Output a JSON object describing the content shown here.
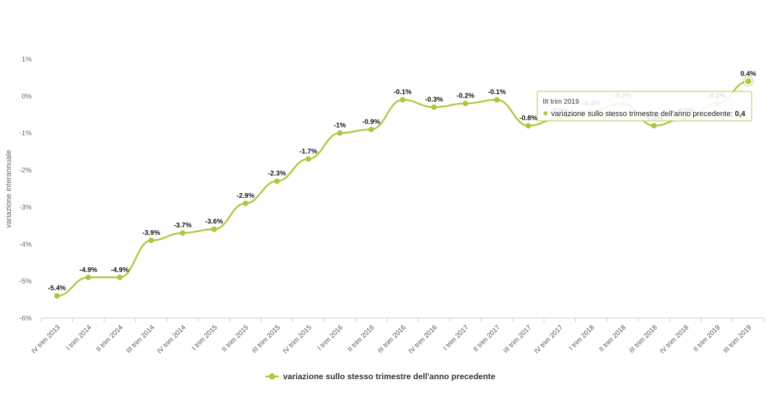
{
  "chart_data": {
    "type": "line",
    "ylabel": "variazione interannuale",
    "ylim": [
      -6,
      1
    ],
    "yticks": [
      "1%",
      "0%",
      "-1%",
      "-2%",
      "-3%",
      "-4%",
      "-5%",
      "-6%"
    ],
    "grid": false,
    "legend_position": "bottom",
    "categories": [
      "IV trim 2013",
      "I trim 2014",
      "II trim 2014",
      "III trim 2014",
      "IV trim 2014",
      "I trim 2015",
      "II trim 2015",
      "III trim 2015",
      "IV trim 2015",
      "I trim 2016",
      "II trim 2016",
      "III trim 2016",
      "IV trim 2016",
      "I trim 2017",
      "II trim 2017",
      "III trim 2017",
      "IV trim 2017",
      "I trim 2018",
      "II trim 2018",
      "III trim 2018",
      "IV trim 2018",
      "II trim 2019",
      "III trim 2019"
    ],
    "series": [
      {
        "name": "variazione sullo stesso trimestre dell'anno precedente",
        "color": "#a9c93a",
        "values": [
          -5.4,
          -4.9,
          -4.9,
          -3.9,
          -3.7,
          -3.6,
          -2.9,
          -2.3,
          -1.7,
          -1,
          -0.9,
          -0.1,
          -0.3,
          -0.2,
          -0.1,
          -0.8,
          -0.6,
          -0.4,
          -0.2,
          -0.8,
          -0.6,
          -0.2,
          0.4
        ],
        "labels": [
          "-5.4%",
          "-4.9%",
          "-4.9%",
          "-3.9%",
          "-3.7%",
          "-3.6%",
          "-2.9%",
          "-2.3%",
          "-1.7%",
          "-1%",
          "-0.9%",
          "-0.1%",
          "-0.3%",
          "-0.2%",
          "-0.1%",
          "-0.8%",
          "-0.6%",
          "-0.4%",
          "-0.2%",
          "-0.8%",
          "-0.6%",
          "-0.2%",
          "0.4%"
        ]
      }
    ],
    "tooltip": {
      "category": "III trim 2019",
      "series_name": "variazione sullo stesso trimestre dell'anno precedente",
      "value": "0,4"
    }
  }
}
